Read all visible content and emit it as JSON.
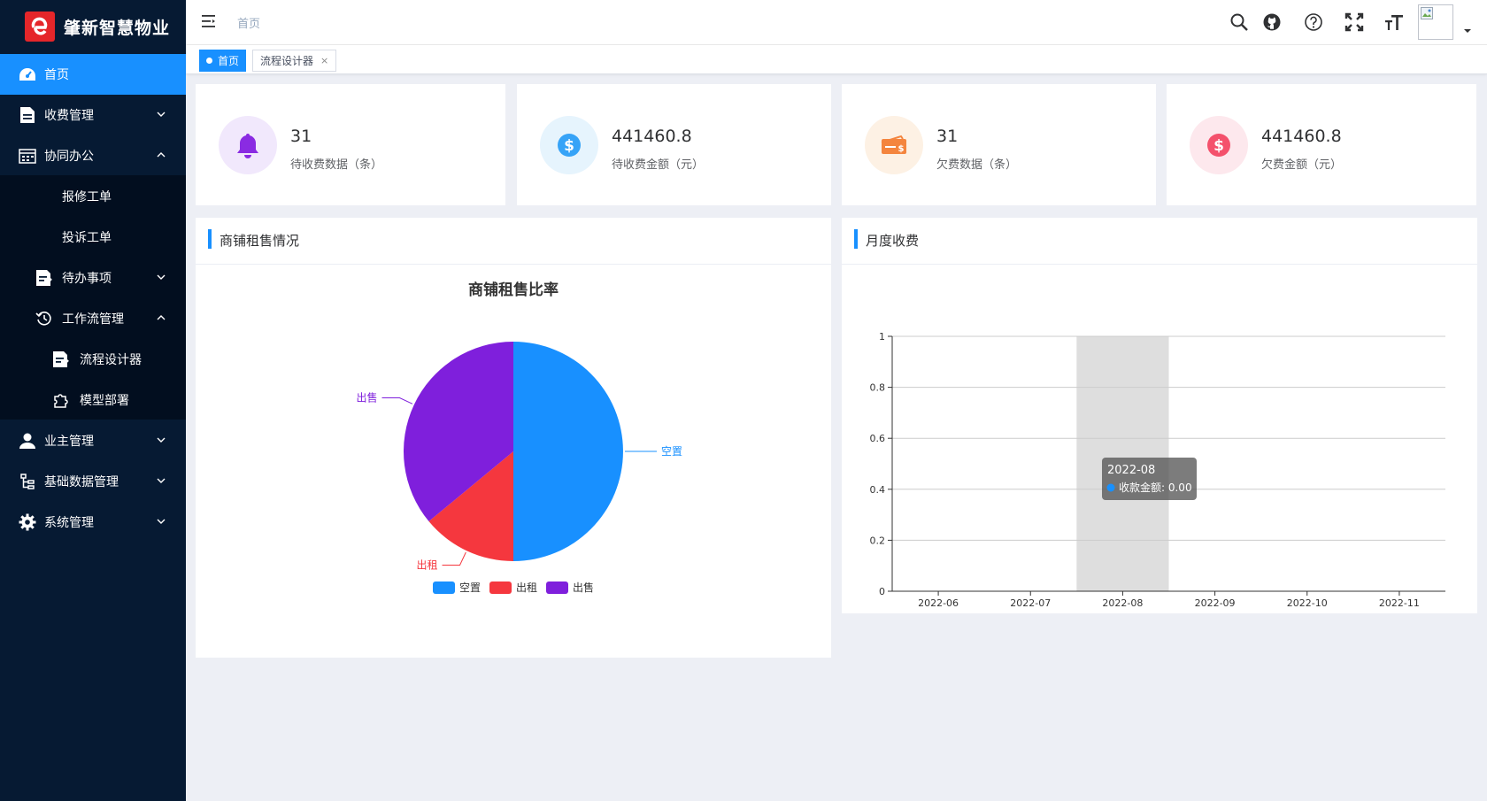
{
  "app": {
    "logo_text": "肇新智慧物业"
  },
  "sidebar": {
    "items": [
      {
        "label": "首页"
      },
      {
        "label": "收费管理"
      },
      {
        "label": "协同办公"
      },
      {
        "label": "报修工单"
      },
      {
        "label": "投诉工单"
      },
      {
        "label": "待办事项"
      },
      {
        "label": "工作流管理"
      },
      {
        "label": "流程设计器"
      },
      {
        "label": "模型部署"
      },
      {
        "label": "业主管理"
      },
      {
        "label": "基础数据管理"
      },
      {
        "label": "系统管理"
      }
    ]
  },
  "header": {
    "breadcrumb": "首页"
  },
  "tags": [
    {
      "label": "首页"
    },
    {
      "label": "流程设计器",
      "close": "×"
    }
  ],
  "stats": [
    {
      "value": "31",
      "label": "待收费数据（条）",
      "icon": "bell-icon",
      "color": "#8a2be2"
    },
    {
      "value": "441460.8",
      "label": "待收费金额（元）",
      "icon": "dollar-icon",
      "color": "#36a3f7"
    },
    {
      "value": "31",
      "label": "欠费数据（条）",
      "icon": "bill-icon",
      "color": "#f4853e"
    },
    {
      "value": "441460.8",
      "label": "欠费金额（元）",
      "icon": "dollar-icon",
      "color": "#f4516c"
    }
  ],
  "panels": {
    "left_title": "商铺租售情况",
    "right_title": "月度收费"
  },
  "chart_data": [
    {
      "type": "pie",
      "title": "商铺租售比率",
      "slices": [
        {
          "name": "空置",
          "value": 50,
          "color": "#1890ff"
        },
        {
          "name": "出租",
          "value": 14,
          "color": "#f5373e"
        },
        {
          "name": "出售",
          "value": 36,
          "color": "#7f1fdc"
        }
      ],
      "legend": [
        "空置",
        "出租",
        "出售"
      ],
      "legend_position": "bottom"
    },
    {
      "type": "bar",
      "categories": [
        "2022-06",
        "2022-07",
        "2022-08",
        "2022-09",
        "2022-10",
        "2022-11"
      ],
      "series": [
        {
          "name": "收款金额",
          "values": [
            0,
            0,
            0,
            0,
            0,
            0
          ]
        }
      ],
      "ylim": [
        0,
        1
      ],
      "yticks": [
        "0",
        "0.2",
        "0.4",
        "0.6",
        "0.8",
        "1"
      ],
      "grid": true,
      "tooltip": {
        "title": "2022-08",
        "label": "收款金额",
        "value": "0.00"
      }
    }
  ]
}
